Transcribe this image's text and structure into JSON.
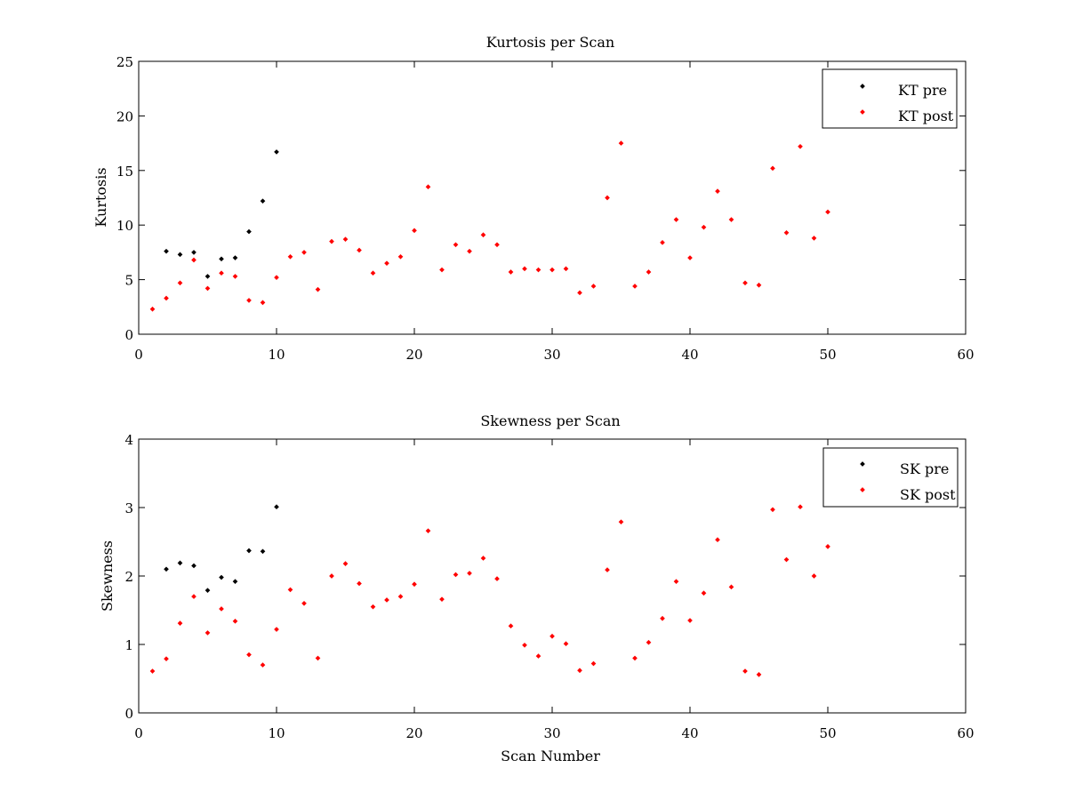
{
  "chart_data": [
    {
      "type": "scatter",
      "title": "Kurtosis per Scan",
      "xlabel": "",
      "ylabel": "Kurtosis",
      "xlim": [
        0,
        60
      ],
      "ylim": [
        0,
        25
      ],
      "xticks": [
        0,
        10,
        20,
        30,
        40,
        50,
        60
      ],
      "yticks": [
        0,
        5,
        10,
        15,
        20,
        25
      ],
      "grid": false,
      "legend_position": "top-right",
      "series": [
        {
          "name": "KT pre",
          "color": "#000000",
          "x": [
            2,
            3,
            4,
            5,
            6,
            7,
            8,
            9,
            10
          ],
          "y": [
            7.6,
            7.3,
            7.5,
            5.3,
            6.9,
            7.0,
            9.4,
            12.2,
            16.7
          ]
        },
        {
          "name": "KT post",
          "color": "#ff0000",
          "x": [
            1,
            2,
            3,
            4,
            5,
            6,
            7,
            8,
            9,
            10,
            11,
            12,
            13,
            14,
            15,
            16,
            17,
            18,
            19,
            20,
            21,
            22,
            23,
            24,
            25,
            26,
            27,
            28,
            29,
            30,
            31,
            32,
            33,
            34,
            35,
            36,
            37,
            38,
            39,
            40,
            41,
            42,
            43,
            44,
            45,
            46,
            47,
            48,
            49,
            50
          ],
          "y": [
            2.3,
            3.3,
            4.7,
            6.8,
            4.2,
            5.6,
            5.3,
            3.1,
            2.9,
            5.2,
            7.1,
            7.5,
            4.1,
            8.5,
            8.7,
            7.7,
            5.6,
            6.5,
            7.1,
            9.5,
            13.5,
            5.9,
            8.2,
            7.6,
            9.1,
            8.2,
            5.7,
            6.0,
            5.9,
            5.9,
            6.0,
            3.8,
            4.4,
            12.5,
            17.5,
            4.4,
            5.7,
            8.4,
            10.5,
            7.0,
            9.8,
            13.1,
            10.5,
            4.7,
            4.5,
            15.2,
            9.3,
            17.2,
            8.8,
            11.2
          ]
        }
      ]
    },
    {
      "type": "scatter",
      "title": "Skewness per Scan",
      "xlabel": "Scan Number",
      "ylabel": "Skewness",
      "xlim": [
        0,
        60
      ],
      "ylim": [
        0,
        4
      ],
      "xticks": [
        0,
        10,
        20,
        30,
        40,
        50,
        60
      ],
      "yticks": [
        0,
        1,
        2,
        3,
        4
      ],
      "grid": false,
      "legend_position": "top-right",
      "series": [
        {
          "name": "SK pre",
          "color": "#000000",
          "x": [
            2,
            3,
            4,
            5,
            6,
            7,
            8,
            9,
            10
          ],
          "y": [
            2.1,
            2.19,
            2.15,
            1.79,
            1.98,
            1.92,
            2.37,
            2.36,
            3.01
          ]
        },
        {
          "name": "SK post",
          "color": "#ff0000",
          "x": [
            1,
            2,
            3,
            4,
            5,
            6,
            7,
            8,
            9,
            10,
            11,
            12,
            13,
            14,
            15,
            16,
            17,
            18,
            19,
            20,
            21,
            22,
            23,
            24,
            25,
            26,
            27,
            28,
            29,
            30,
            31,
            32,
            33,
            34,
            35,
            36,
            37,
            38,
            39,
            40,
            41,
            42,
            43,
            44,
            45,
            46,
            47,
            48,
            49,
            50
          ],
          "y": [
            0.61,
            0.79,
            1.31,
            1.7,
            1.17,
            1.52,
            1.34,
            0.85,
            0.7,
            1.22,
            1.8,
            1.6,
            0.8,
            2.0,
            2.18,
            1.89,
            1.55,
            1.65,
            1.7,
            1.88,
            2.66,
            1.66,
            2.02,
            2.04,
            2.26,
            1.96,
            1.27,
            0.99,
            0.83,
            1.12,
            1.01,
            0.62,
            0.72,
            2.09,
            2.79,
            0.8,
            1.03,
            1.38,
            1.92,
            1.35,
            1.75,
            2.53,
            1.84,
            0.61,
            0.56,
            2.97,
            2.24,
            3.01,
            2.0,
            2.43
          ]
        }
      ]
    }
  ]
}
